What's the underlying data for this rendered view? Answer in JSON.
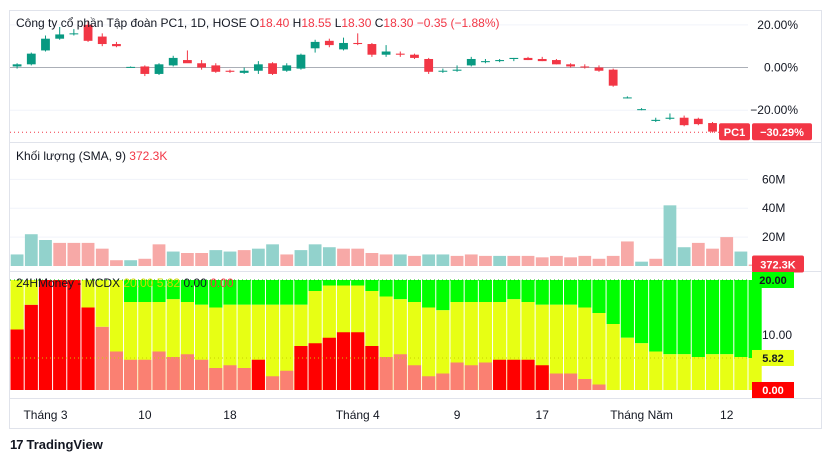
{
  "header": {
    "symbol_title": "Công ty cổ phần Tập đoàn PC1, 1D, HOSE",
    "open_label": "O",
    "open": "18.40",
    "high_label": "H",
    "high": "18.55",
    "low_label": "L",
    "low": "18.30",
    "close_label": "C",
    "close": "18.30",
    "change": "−0.35 (−1.88%)"
  },
  "volume_pane": {
    "title": "Khối lượng (SMA, 9)",
    "sma_value": "372.3K"
  },
  "indicator_pane": {
    "title": "24HMoney - MCDX",
    "v1": "20.00",
    "v2": "5.82",
    "v3": "0.00",
    "v4": "0.00"
  },
  "branding": {
    "text": "TradingView"
  },
  "colors": {
    "up": "#089981",
    "down": "#f23645",
    "vol_up": "#92d2cc",
    "vol_down": "#f7a9a7",
    "mc_green": "#00ff00",
    "mc_yellow": "#e7ff14",
    "mc_red": "#ff0000",
    "mc_salmon": "#fa8072",
    "grid": "#f0f3fa",
    "axis_text": "#131722"
  },
  "chart_data": [
    {
      "type": "candlestick",
      "title": "Công ty cổ phần Tập đoàn PC1, 1D, HOSE",
      "y_unit": "percent",
      "ylim": [
        -33,
        26
      ],
      "y_ticks": [
        "20.00%",
        "0.00%",
        "−20.00%"
      ],
      "y_tick_values": [
        20,
        0,
        -20
      ],
      "x_labels": [
        "Tháng 3",
        "10",
        "18",
        "Tháng 4",
        "9",
        "17",
        "Tháng Năm",
        "12"
      ],
      "x_label_index": [
        2,
        9,
        15,
        24,
        31,
        37,
        44,
        50
      ],
      "last_label": {
        "symbol": "PC1",
        "value": "−30.29%",
        "y": -30.29
      },
      "candles": [
        {
          "o": 0.5,
          "h": 2.0,
          "l": -0.5,
          "c": 1.5
        },
        {
          "o": 1.5,
          "h": 7.0,
          "l": 1.0,
          "c": 6.5
        },
        {
          "o": 8.0,
          "h": 15.0,
          "l": 7.5,
          "c": 13.5
        },
        {
          "o": 13.5,
          "h": 19.0,
          "l": 13.0,
          "c": 15.5
        },
        {
          "o": 16.0,
          "h": 18.0,
          "l": 15.0,
          "c": 16.0
        },
        {
          "o": 20.0,
          "h": 22.0,
          "l": 12.0,
          "c": 12.5
        },
        {
          "o": 14.5,
          "h": 16.0,
          "l": 10.0,
          "c": 11.0
        },
        {
          "o": 11.0,
          "h": 12.0,
          "l": 9.5,
          "c": 10.0
        },
        {
          "o": 0.2,
          "h": 0.5,
          "l": 0.0,
          "c": 0.3
        },
        {
          "o": 0.5,
          "h": 1.0,
          "l": -4.0,
          "c": -3.0
        },
        {
          "o": -3.0,
          "h": 2.0,
          "l": -3.5,
          "c": 1.5
        },
        {
          "o": 1.0,
          "h": 5.5,
          "l": 0.5,
          "c": 4.5
        },
        {
          "o": 3.5,
          "h": 8.0,
          "l": 2.5,
          "c": 2.0
        },
        {
          "o": 2.0,
          "h": 3.5,
          "l": -1.0,
          "c": 0.0
        },
        {
          "o": 1.0,
          "h": 2.0,
          "l": -2.5,
          "c": -2.0
        },
        {
          "o": -1.5,
          "h": -1.0,
          "l": -2.5,
          "c": -2.0
        },
        {
          "o": -2.5,
          "h": 0.0,
          "l": -3.0,
          "c": -1.5
        },
        {
          "o": -1.5,
          "h": 3.0,
          "l": -3.0,
          "c": 1.5
        },
        {
          "o": 2.0,
          "h": 2.5,
          "l": -3.5,
          "c": -3.0
        },
        {
          "o": -1.5,
          "h": 2.0,
          "l": -2.0,
          "c": 1.0
        },
        {
          "o": -0.5,
          "h": 6.5,
          "l": -1.0,
          "c": 6.0
        },
        {
          "o": 9.0,
          "h": 13.0,
          "l": 7.0,
          "c": 12.0
        },
        {
          "o": 12.5,
          "h": 13.5,
          "l": 9.5,
          "c": 10.5
        },
        {
          "o": 8.5,
          "h": 14.0,
          "l": 8.0,
          "c": 11.5
        },
        {
          "o": 11.5,
          "h": 16.0,
          "l": 10.5,
          "c": 11.0
        },
        {
          "o": 11.0,
          "h": 11.5,
          "l": 5.0,
          "c": 6.0
        },
        {
          "o": 6.0,
          "h": 10.5,
          "l": 5.0,
          "c": 7.5
        },
        {
          "o": 6.5,
          "h": 7.5,
          "l": 5.0,
          "c": 6.0
        },
        {
          "o": 6.0,
          "h": 6.5,
          "l": 4.0,
          "c": 4.5
        },
        {
          "o": 4.0,
          "h": 4.5,
          "l": -3.0,
          "c": -2.0
        },
        {
          "o": -1.5,
          "h": -0.5,
          "l": -2.5,
          "c": -1.5
        },
        {
          "o": -1.5,
          "h": 1.0,
          "l": -2.0,
          "c": -1.0
        },
        {
          "o": 1.0,
          "h": 5.0,
          "l": 0.5,
          "c": 4.0
        },
        {
          "o": 2.5,
          "h": 4.0,
          "l": 2.0,
          "c": 3.0
        },
        {
          "o": 3.0,
          "h": 4.0,
          "l": 2.5,
          "c": 3.5
        },
        {
          "o": 4.0,
          "h": 4.5,
          "l": 3.0,
          "c": 4.5
        },
        {
          "o": 4.5,
          "h": 5.0,
          "l": 3.5,
          "c": 3.5
        },
        {
          "o": 4.0,
          "h": 5.0,
          "l": 3.0,
          "c": 3.0
        },
        {
          "o": 3.5,
          "h": 4.0,
          "l": 1.5,
          "c": 1.5
        },
        {
          "o": 1.5,
          "h": 2.0,
          "l": 0.0,
          "c": 0.5
        },
        {
          "o": 0.5,
          "h": 1.5,
          "l": -0.5,
          "c": 0.0
        },
        {
          "o": 0.0,
          "h": 1.0,
          "l": -2.0,
          "c": -1.5
        },
        {
          "o": -1.0,
          "h": -0.5,
          "l": -9.0,
          "c": -8.5
        },
        {
          "o": -14.0,
          "h": -13.5,
          "l": -14.5,
          "c": -14.0
        },
        {
          "o": -19.5,
          "h": -19.0,
          "l": -20.0,
          "c": -19.5
        },
        {
          "o": -25.0,
          "h": -23.5,
          "l": -25.5,
          "c": -24.5
        },
        {
          "o": -24.0,
          "h": -21.5,
          "l": -24.5,
          "c": -23.5
        },
        {
          "o": -23.5,
          "h": -22.5,
          "l": -27.5,
          "c": -27.0
        },
        {
          "o": -24.0,
          "h": -23.5,
          "l": -27.0,
          "c": -26.5
        },
        {
          "o": -26.0,
          "h": -25.5,
          "l": -30.5,
          "c": -30.0
        },
        {
          "o": -31.0,
          "h": -28.0,
          "l": -31.5,
          "c": -28.5
        },
        {
          "o": -29.0,
          "h": -28.5,
          "l": -30.5,
          "c": -30.3
        }
      ]
    },
    {
      "type": "bar",
      "title": "Khối lượng (SMA, 9)",
      "ylim": [
        0,
        72
      ],
      "y_unit": "M",
      "y_ticks": [
        "60M",
        "40M",
        "20M"
      ],
      "y_tick_values": [
        60,
        40,
        20
      ],
      "last_label": "372.3K",
      "values": [
        8,
        22,
        18,
        16,
        16,
        16,
        12,
        4,
        4,
        5,
        15,
        10,
        9,
        9,
        11,
        10,
        11,
        12,
        15,
        8,
        11,
        15,
        13,
        12,
        12,
        9,
        8,
        8,
        7,
        8,
        8,
        7,
        8,
        7,
        7,
        7,
        7,
        6,
        7,
        6,
        7,
        5,
        7,
        17,
        3,
        5,
        42,
        13,
        16,
        12,
        20,
        10,
        1
      ],
      "up": [
        1,
        1,
        1,
        0,
        0,
        0,
        0,
        0,
        1,
        0,
        0,
        1,
        0,
        0,
        1,
        1,
        0,
        1,
        1,
        0,
        1,
        1,
        1,
        0,
        0,
        0,
        0,
        1,
        0,
        1,
        1,
        0,
        0,
        0,
        1,
        0,
        0,
        0,
        0,
        0,
        0,
        0,
        0,
        0,
        1,
        0,
        1,
        1,
        0,
        0,
        0,
        1,
        0
      ]
    },
    {
      "type": "bar",
      "title": "24HMoney - MCDX",
      "ylim": [
        0,
        20
      ],
      "y_ticks": [
        "20.00",
        "10.00"
      ],
      "y_tick_values": [
        20,
        10
      ],
      "value_labels": [
        "20.00",
        "5.82",
        "0.00"
      ],
      "bars": [
        {
          "g": 0,
          "y": 0,
          "r": 11.0,
          "type": "red"
        },
        {
          "g": 0,
          "y": 0,
          "r": 15.5,
          "type": "red"
        },
        {
          "g": 0,
          "y": 0,
          "r": 20,
          "type": "red"
        },
        {
          "g": 0,
          "y": 0,
          "r": 20,
          "type": "red"
        },
        {
          "g": 0,
          "y": 0,
          "r": 20,
          "type": "red"
        },
        {
          "g": 0,
          "y": 0,
          "r": 15.0,
          "type": "red"
        },
        {
          "g": 0,
          "y": 0,
          "r": 11.5,
          "type": "salmon"
        },
        {
          "g": 0,
          "y": 0,
          "r": 7.0,
          "type": "salmon"
        },
        {
          "g": 20,
          "y": 16.0,
          "r": 5.5,
          "type": "salmon"
        },
        {
          "g": 20,
          "y": 16.0,
          "r": 5.5,
          "type": "salmon"
        },
        {
          "g": 20,
          "y": 16.0,
          "r": 7.0,
          "type": "salmon"
        },
        {
          "g": 20,
          "y": 16.5,
          "r": 6.0,
          "type": "salmon"
        },
        {
          "g": 20,
          "y": 16.0,
          "r": 6.5,
          "type": "salmon"
        },
        {
          "g": 20,
          "y": 15.5,
          "r": 5.5,
          "type": "salmon"
        },
        {
          "g": 20,
          "y": 15.0,
          "r": 4.0,
          "type": "salmon"
        },
        {
          "g": 20,
          "y": 15.5,
          "r": 4.5,
          "type": "salmon"
        },
        {
          "g": 20,
          "y": 15.5,
          "r": 4.0,
          "type": "salmon"
        },
        {
          "g": 20,
          "y": 15.5,
          "r": 5.5,
          "type": "red"
        },
        {
          "g": 20,
          "y": 15.5,
          "r": 2.5,
          "type": "salmon"
        },
        {
          "g": 20,
          "y": 15.5,
          "r": 3.5,
          "type": "salmon"
        },
        {
          "g": 20,
          "y": 15.5,
          "r": 8.0,
          "type": "red"
        },
        {
          "g": 20,
          "y": 18.0,
          "r": 8.5,
          "type": "red"
        },
        {
          "g": 20,
          "y": 19.0,
          "r": 9.5,
          "type": "red"
        },
        {
          "g": 20,
          "y": 19.0,
          "r": 10.5,
          "type": "red"
        },
        {
          "g": 20,
          "y": 19.0,
          "r": 10.5,
          "type": "red"
        },
        {
          "g": 20,
          "y": 18.0,
          "r": 8.0,
          "type": "red"
        },
        {
          "g": 20,
          "y": 17.0,
          "r": 6.0,
          "type": "salmon"
        },
        {
          "g": 20,
          "y": 16.5,
          "r": 6.5,
          "type": "salmon"
        },
        {
          "g": 20,
          "y": 16.0,
          "r": 4.5,
          "type": "salmon"
        },
        {
          "g": 20,
          "y": 15.0,
          "r": 2.5,
          "type": "salmon"
        },
        {
          "g": 20,
          "y": 14.5,
          "r": 3.0,
          "type": "salmon"
        },
        {
          "g": 20,
          "y": 16.0,
          "r": 5.0,
          "type": "salmon"
        },
        {
          "g": 20,
          "y": 16.0,
          "r": 4.5,
          "type": "salmon"
        },
        {
          "g": 20,
          "y": 16.0,
          "r": 5.0,
          "type": "salmon"
        },
        {
          "g": 20,
          "y": 16.0,
          "r": 5.5,
          "type": "red"
        },
        {
          "g": 20,
          "y": 16.5,
          "r": 5.5,
          "type": "red"
        },
        {
          "g": 20,
          "y": 16.0,
          "r": 5.5,
          "type": "red"
        },
        {
          "g": 20,
          "y": 15.5,
          "r": 4.5,
          "type": "red"
        },
        {
          "g": 20,
          "y": 15.5,
          "r": 3.0,
          "type": "salmon"
        },
        {
          "g": 20,
          "y": 15.5,
          "r": 3.0,
          "type": "salmon"
        },
        {
          "g": 20,
          "y": 15.0,
          "r": 2.0,
          "type": "salmon"
        },
        {
          "g": 20,
          "y": 14.0,
          "r": 1.0,
          "type": "salmon"
        },
        {
          "g": 20,
          "y": 12.0,
          "r": 0,
          "type": "none"
        },
        {
          "g": 20,
          "y": 9.5,
          "r": 0,
          "type": "none"
        },
        {
          "g": 20,
          "y": 8.5,
          "r": 0,
          "type": "none"
        },
        {
          "g": 20,
          "y": 7.0,
          "r": 0,
          "type": "none"
        },
        {
          "g": 20,
          "y": 6.5,
          "r": 0,
          "type": "none"
        },
        {
          "g": 20,
          "y": 6.5,
          "r": 0,
          "type": "none"
        },
        {
          "g": 20,
          "y": 6.0,
          "r": 0,
          "type": "none"
        },
        {
          "g": 20,
          "y": 6.5,
          "r": 0,
          "type": "none"
        },
        {
          "g": 20,
          "y": 6.5,
          "r": 0,
          "type": "none"
        },
        {
          "g": 20,
          "y": 6.0,
          "r": 0,
          "type": "none"
        },
        {
          "g": 20,
          "y": 5.82,
          "r": 0,
          "type": "none"
        }
      ]
    }
  ]
}
